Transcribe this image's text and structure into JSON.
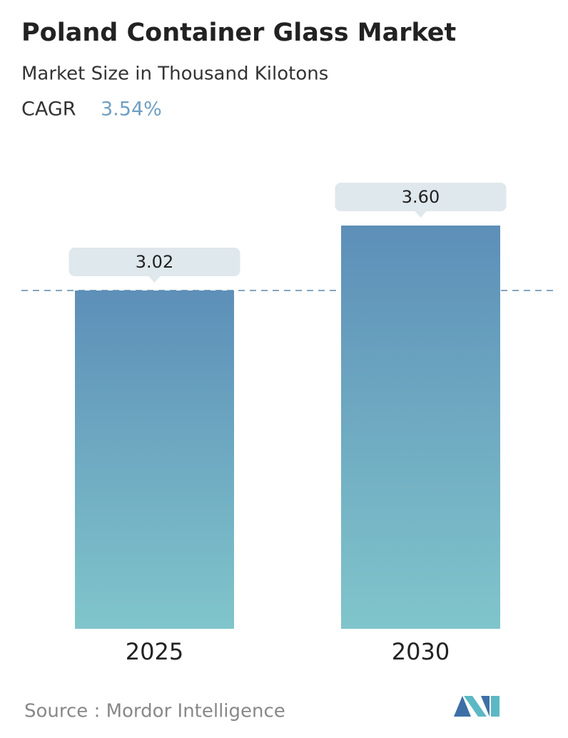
{
  "chart_data": {
    "type": "bar",
    "title": "Poland Container Glass Market",
    "subtitle": "Market Size in Thousand Kilotons",
    "cagr_label": "CAGR",
    "cagr_value": "3.54%",
    "categories": [
      "2025",
      "2030"
    ],
    "values": [
      3.02,
      3.6
    ],
    "value_labels": [
      "3.02",
      "3.60"
    ],
    "colors": [
      "#5d8fb8",
      "#80c5cb"
    ],
    "source": "Source :  Mordor Intelligence"
  }
}
